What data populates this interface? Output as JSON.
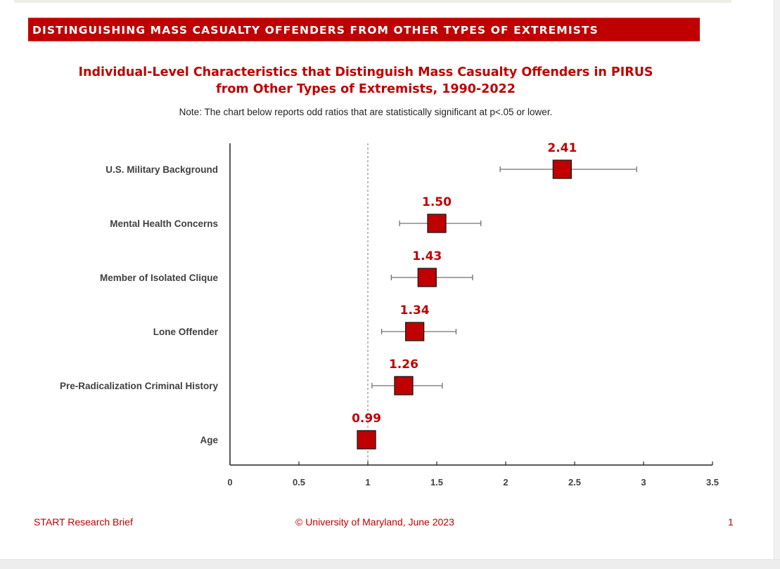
{
  "section_banner": "DISTINGUISHING MASS CASUALTY OFFENDERS FROM OTHER TYPES OF EXTREMISTS",
  "title_line1": "Individual-Level Characteristics that Distinguish Mass Casualty Offenders in PIRUS",
  "title_line2": "from Other Types of Extremists, 1990-2022",
  "note": "Note: The chart below reports odd ratios that are statistically significant at p<.05 or lower.",
  "footer": {
    "left": "START Research Brief",
    "center": "© University of Maryland, June 2023",
    "page": "1"
  },
  "colors": {
    "accent": "#c00000",
    "marker": "#c00000",
    "errorbar": "#707070"
  },
  "chart_data": {
    "type": "scatter",
    "subtype": "forest-plot",
    "title": "Individual-Level Characteristics that Distinguish Mass Casualty Offenders in PIRUS from Other Types of Extremists, 1990-2022",
    "xlabel": "",
    "ylabel": "",
    "xlim": [
      0,
      3.5
    ],
    "xticks": [
      0,
      0.5,
      1,
      1.5,
      2,
      2.5,
      3,
      3.5
    ],
    "xtick_labels": [
      "0",
      "0.5",
      "1",
      "1.5",
      "2",
      "2.5",
      "3",
      "3.5"
    ],
    "reference_line": 1,
    "grid": false,
    "categories": [
      "U.S. Military Background",
      "Mental Health Concerns",
      "Member of Isolated Clique",
      "Lone Offender",
      "Pre-Radicalization Criminal History",
      "Age"
    ],
    "values": [
      2.41,
      1.5,
      1.43,
      1.34,
      1.26,
      0.99
    ],
    "value_labels": [
      "2.41",
      "1.50",
      "1.43",
      "1.34",
      "1.26",
      "0.99"
    ],
    "ci_lower": [
      1.96,
      1.23,
      1.17,
      1.1,
      1.03,
      0.98
    ],
    "ci_upper": [
      2.95,
      1.82,
      1.76,
      1.64,
      1.54,
      1.0
    ]
  }
}
